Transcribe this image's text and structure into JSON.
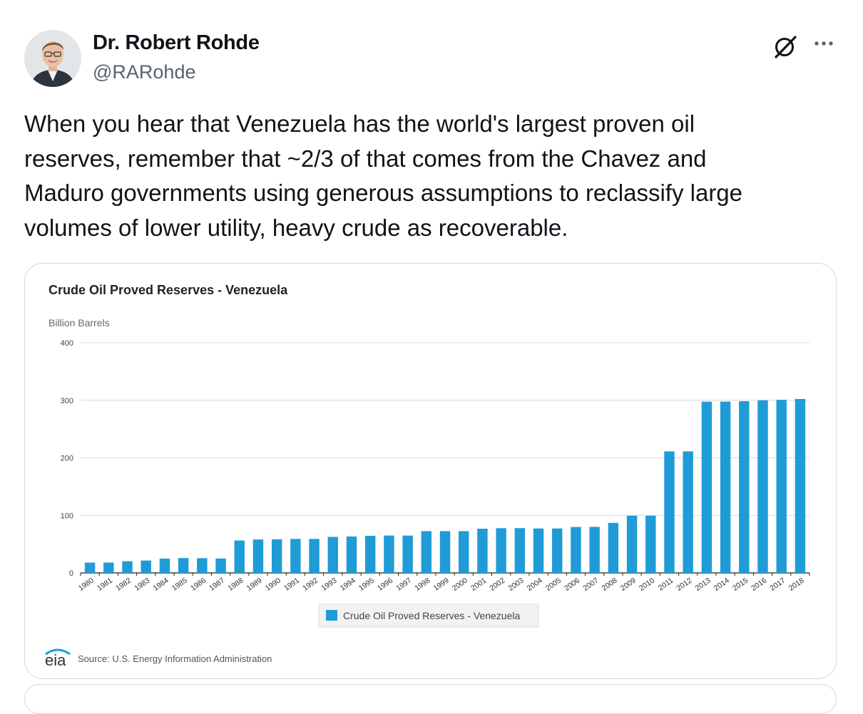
{
  "author": {
    "display_name": "Dr. Robert Rohde",
    "handle": "@RARohde"
  },
  "icons": {
    "avatar": "user-avatar",
    "grok": "grok-icon",
    "more": "more-icon"
  },
  "tweet": {
    "text": "When you hear that Venezuela has the world's largest proven oil\nreserves, remember that ~2/3 of that comes from the Chavez and\nMaduro governments using generous assumptions to reclassify large\nvolumes of lower utility, heavy crude as recoverable."
  },
  "colors": {
    "bar": "#1f9bd7",
    "text": "#0f1419",
    "muted": "#536471",
    "border": "#cfd9de"
  },
  "chart_data": {
    "type": "bar",
    "title": "Crude Oil Proved Reserves - Venezuela",
    "ylabel": "Billion Barrels",
    "xlabel": "",
    "ylim": [
      0,
      400
    ],
    "yticks": [
      0,
      100,
      200,
      300,
      400
    ],
    "grid": true,
    "legend_position": "bottom",
    "categories": [
      "1980",
      "1981",
      "1982",
      "1983",
      "1984",
      "1985",
      "1986",
      "1987",
      "1988",
      "1989",
      "1990",
      "1991",
      "1992",
      "1993",
      "1994",
      "1995",
      "1996",
      "1997",
      "1998",
      "1999",
      "2000",
      "2001",
      "2002",
      "2003",
      "2004",
      "2005",
      "2006",
      "2007",
      "2008",
      "2009",
      "2010",
      "2011",
      "2012",
      "2013",
      "2014",
      "2015",
      "2016",
      "2017",
      "2018"
    ],
    "series": [
      {
        "name": "Crude Oil Proved Reserves - Venezuela",
        "color": "#1f9bd7",
        "values": [
          17.9,
          18.0,
          20.3,
          21.5,
          24.9,
          25.8,
          25.6,
          25.0,
          56.3,
          58.1,
          58.5,
          59.1,
          59.1,
          62.6,
          63.3,
          64.5,
          64.9,
          64.9,
          72.6,
          72.6,
          72.6,
          76.8,
          77.7,
          77.8,
          77.2,
          77.2,
          79.7,
          80.0,
          87.0,
          99.4,
          99.4,
          211.2,
          211.2,
          297.6,
          297.7,
          298.4,
          300.0,
          300.9,
          302.3
        ]
      }
    ],
    "source": "Source: U.S. Energy Information Administration",
    "logo_text": "eia"
  }
}
